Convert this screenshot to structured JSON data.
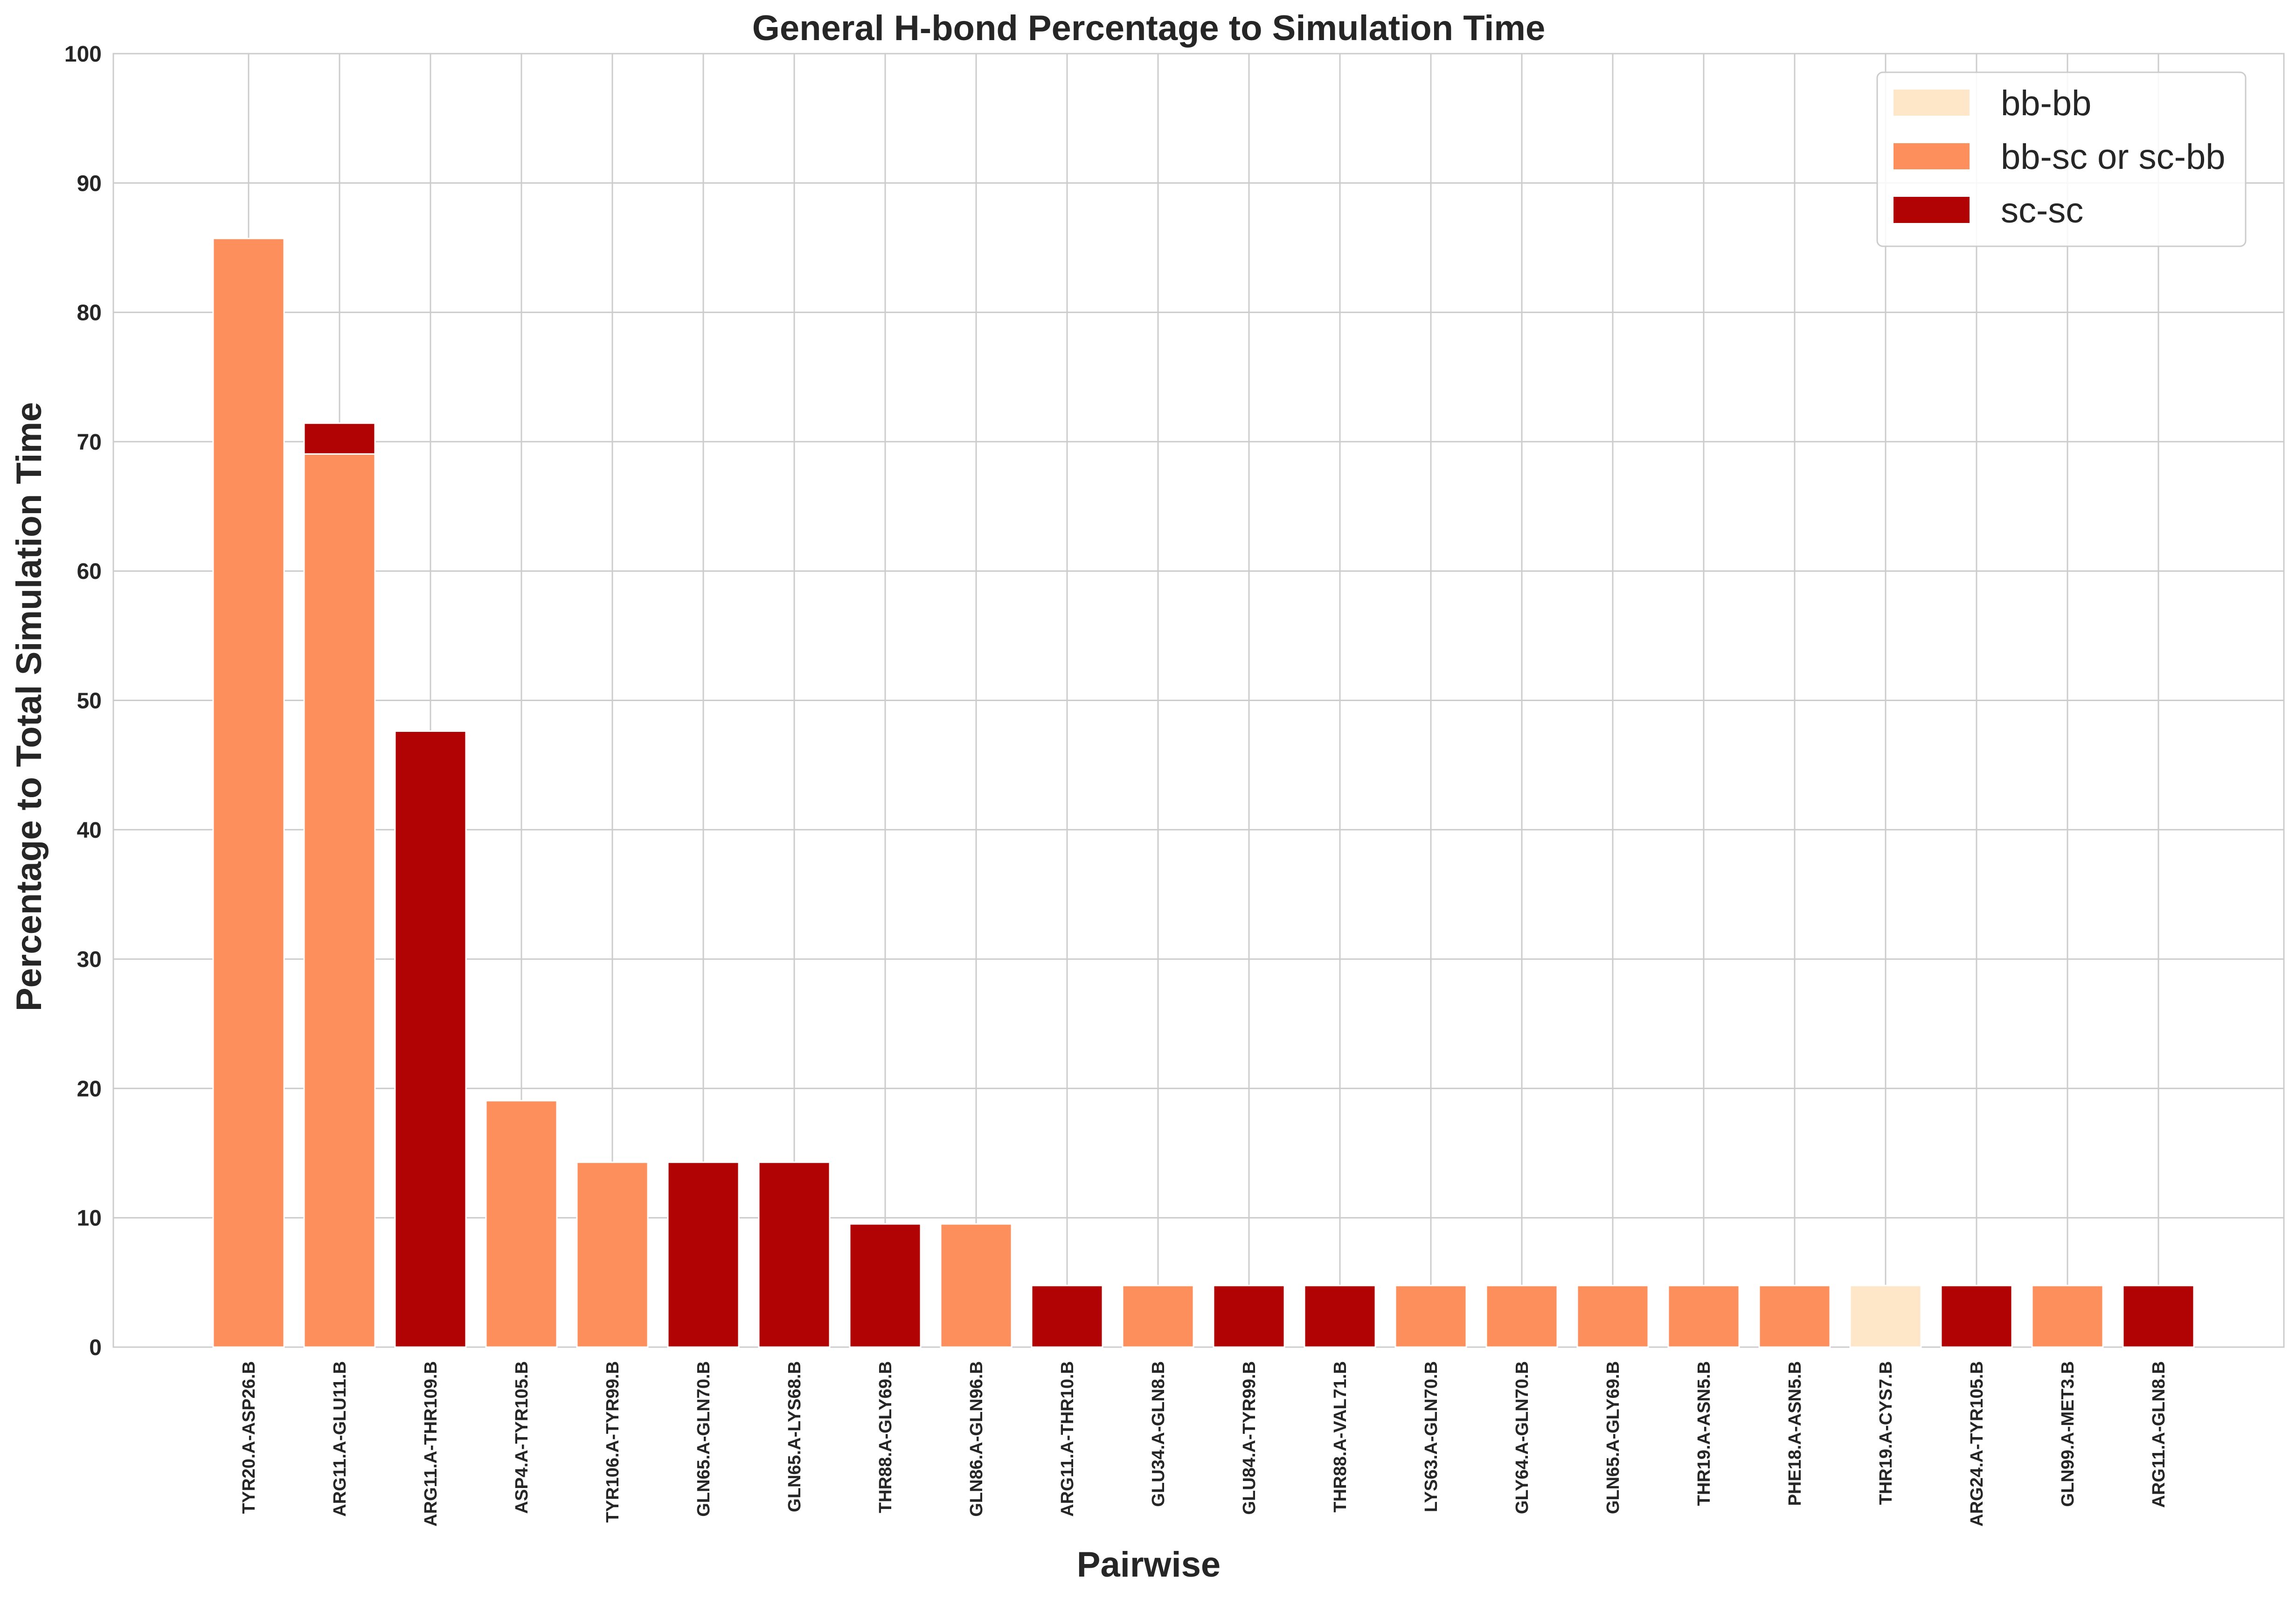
{
  "colors": {
    "background": "#ffffff",
    "grid": "#cccccc",
    "text": "#262626"
  },
  "chart_data": {
    "type": "bar",
    "stacked": true,
    "title": "General H-bond Percentage to Simulation Time",
    "xlabel": "Pairwise",
    "ylabel": "Percentage to Total Simulation Time",
    "ylim": [
      0,
      100
    ],
    "yticks": [
      "0",
      "10",
      "20",
      "30",
      "40",
      "50",
      "60",
      "70",
      "80",
      "90",
      "100"
    ],
    "grid": true,
    "legend_position": "top-right",
    "categories": [
      "TYR20.A-ASP26.B",
      "ARG11.A-GLU11.B",
      "ARG11.A-THR109.B",
      "ASP4.A-TYR105.B",
      "TYR106.A-TYR99.B",
      "GLN65.A-GLN70.B",
      "GLN65.A-LYS68.B",
      "THR88.A-GLY69.B",
      "GLN86.A-GLN96.B",
      "ARG11.A-THR10.B",
      "GLU34.A-GLN8.B",
      "GLU84.A-TYR99.B",
      "THR88.A-VAL71.B",
      "LYS63.A-GLN70.B",
      "GLY64.A-GLN70.B",
      "GLN65.A-GLY69.B",
      "THR19.A-ASN5.B",
      "PHE18.A-ASN5.B",
      "THR19.A-CYS7.B",
      "ARG24.A-TYR105.B",
      "GLN99.A-MET3.B",
      "ARG11.A-GLN8.B"
    ],
    "series": [
      {
        "name": "bb-bb",
        "color": "#fee6c9",
        "values": [
          0,
          0,
          0,
          0,
          0,
          0,
          0,
          0,
          0,
          0,
          0,
          0,
          0,
          0,
          0,
          0,
          0,
          0,
          4.76,
          0,
          0,
          0
        ]
      },
      {
        "name": "bb-sc or sc-bb",
        "color": "#fc8f5b",
        "values": [
          85.71,
          69.05,
          0,
          19.05,
          14.29,
          0,
          0,
          0,
          9.52,
          0,
          4.76,
          0,
          0,
          4.76,
          4.76,
          4.76,
          4.76,
          4.76,
          0,
          0,
          4.76,
          0
        ]
      },
      {
        "name": "sc-sc",
        "color": "#b10303",
        "values": [
          0,
          2.38,
          47.62,
          0,
          0,
          14.29,
          14.29,
          9.52,
          0,
          4.76,
          0,
          4.76,
          4.76,
          0,
          0,
          0,
          0,
          0,
          0,
          4.76,
          0,
          4.76
        ]
      }
    ]
  }
}
